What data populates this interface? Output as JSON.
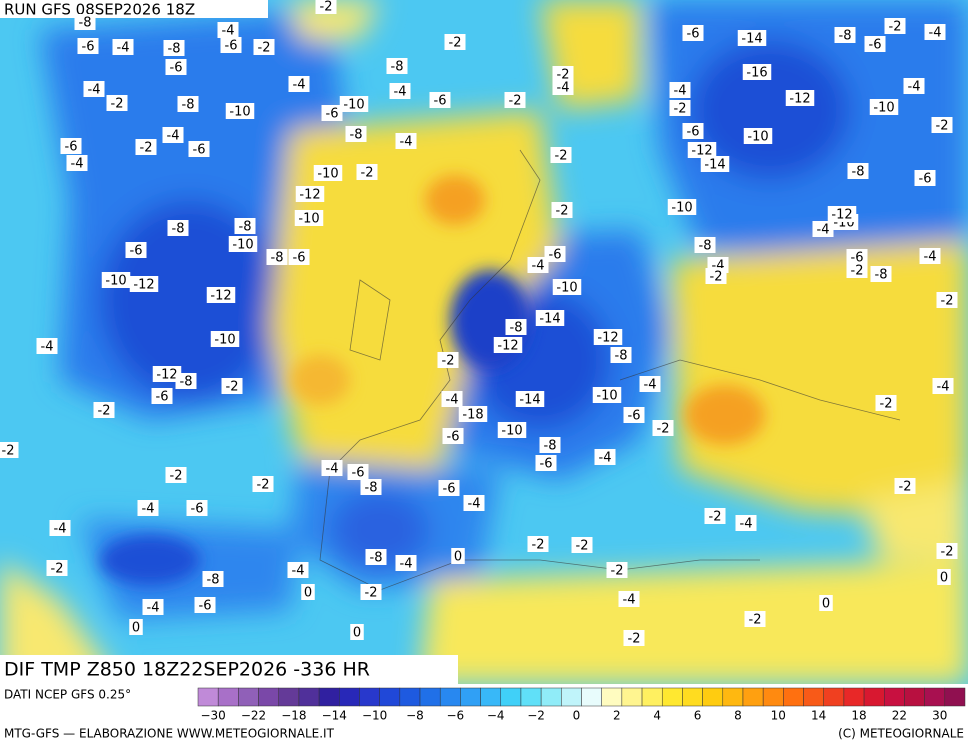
{
  "header": {
    "title": "RUN GFS 08SEP2026 18Z"
  },
  "map": {
    "labels": [
      "-8",
      "-4",
      "-6",
      "-8",
      "-6",
      "-4",
      "-2",
      "-6",
      "-2",
      "-2",
      "-8",
      "-4",
      "-4",
      "-2",
      "-4",
      "-6",
      "-2",
      "-4",
      "-2",
      "-8",
      "-10",
      "-10",
      "-6",
      "-8",
      "-4",
      "-4",
      "-2",
      "-6",
      "-6",
      "-4",
      "-10",
      "-2",
      "-12",
      "-10",
      "-8",
      "-8",
      "-10",
      "-8",
      "-6",
      "-6",
      "-10",
      "-12",
      "-12",
      "-10",
      "-4",
      "-12",
      "-8",
      "-2",
      "-6",
      "-2",
      "-2",
      "-2",
      "-2",
      "-4",
      "-6",
      "-8",
      "-6",
      "-4",
      "-4",
      "-6",
      "-4",
      "-2",
      "-8",
      "-4",
      "-8",
      "-4",
      "0",
      "-2",
      "-2",
      "-2",
      "0",
      "-4",
      "-6",
      "0",
      "0",
      "-2",
      "-4",
      "-2",
      "0",
      "-2",
      "-4",
      "-2",
      "-2",
      "0",
      "-2",
      "-4",
      "-2",
      "-2",
      "-4",
      "-8",
      "-6",
      "-2",
      "-10",
      "-12",
      "-4",
      "-8",
      "-6",
      "-2",
      "-10",
      "-12",
      "-10",
      "-14",
      "-12",
      "-6",
      "-4",
      "-2",
      "-16",
      "-14",
      "-6",
      "-8",
      "-6",
      "-2",
      "-4",
      "-4",
      "-10",
      "-8",
      "-4",
      "-2",
      "-6",
      "-4",
      "-10",
      "-14",
      "-8",
      "-12",
      "-12",
      "-8",
      "-2",
      "-4",
      "-18",
      "-14",
      "-10",
      "-6",
      "-2",
      "-4",
      "-10",
      "-6",
      "-8",
      "-6",
      "-4",
      "-2",
      "-2"
    ]
  },
  "caption": "DIF TMP Z850 18Z22SEP2026 -336 HR",
  "legend": {
    "source": "DATI NCEP GFS 0.25°",
    "colors": [
      "#c08ad8",
      "#a870c8",
      "#9060b8",
      "#7a48a8",
      "#643a98",
      "#50309a",
      "#3020a0",
      "#2828b8",
      "#2838cc",
      "#2048d8",
      "#1e5ae0",
      "#2070e8",
      "#2888f0",
      "#30a0f5",
      "#38b8f8",
      "#40d0f8",
      "#60e0f8",
      "#90ecf8",
      "#c0f4fa",
      "#e8fcfc",
      "#fffcc0",
      "#fff590",
      "#fff060",
      "#ffe830",
      "#ffdc20",
      "#ffcc10",
      "#ffb810",
      "#ffa010",
      "#ff8a10",
      "#ff7010",
      "#f85a18",
      "#f04020",
      "#e82828",
      "#d81830",
      "#c81040",
      "#b81040",
      "#a81050",
      "#901050"
    ],
    "labels": [
      "−30",
      "−22",
      "−18",
      "−14",
      "−10",
      "−8",
      "−6",
      "−4",
      "−2",
      "0",
      "2",
      "4",
      "6",
      "8",
      "10",
      "14",
      "18",
      "22",
      "30"
    ]
  },
  "footer": {
    "left": "MTG-GFS — ELABORAZIONE WWW.METEOGIORNALE.IT",
    "right": "(C) METEOGIORNALE"
  }
}
